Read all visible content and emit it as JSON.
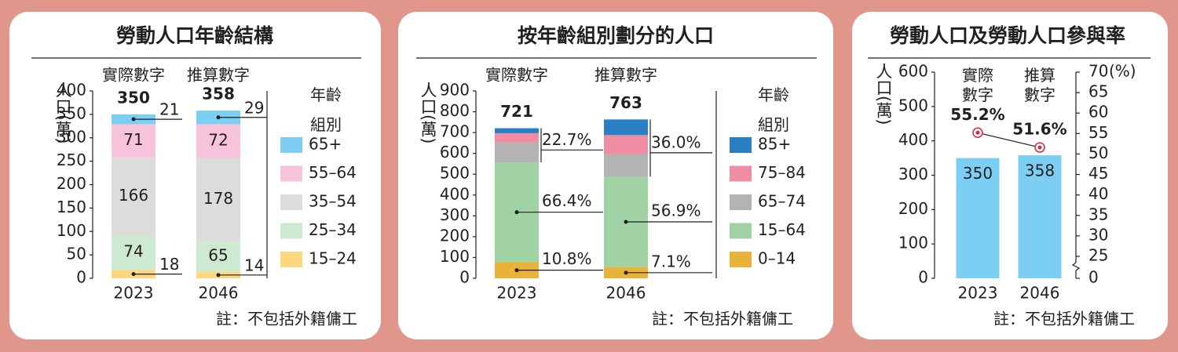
{
  "chart_data": [
    {
      "type": "stacked_bar",
      "title": "勞動人口年齡結構",
      "column_headers": [
        "實際數字",
        "推算數字"
      ],
      "categories": [
        "2023",
        "2046"
      ],
      "ylabel": "人口(萬)",
      "ylim": [
        0,
        400
      ],
      "yticks": [
        0,
        50,
        100,
        150,
        200,
        250,
        300,
        350,
        400
      ],
      "totals": [
        350,
        358
      ],
      "legend_title": "年齡組別",
      "series": [
        {
          "name": "15–24",
          "color": "#fdd77e",
          "values": [
            18,
            14
          ]
        },
        {
          "name": "25–34",
          "color": "#cde9cf",
          "values": [
            74,
            65
          ]
        },
        {
          "name": "35–54",
          "color": "#dcdcdc",
          "values": [
            166,
            178
          ]
        },
        {
          "name": "55–64",
          "color": "#f7c3da",
          "values": [
            71,
            72
          ]
        },
        {
          "name": "65+",
          "color": "#7ccff3",
          "values": [
            21,
            29
          ]
        }
      ],
      "note": "註：不包括外籍傭工"
    },
    {
      "type": "stacked_bar",
      "title": "按年齡組別劃分的人口",
      "column_headers": [
        "實際數字",
        "推算數字"
      ],
      "categories": [
        "2023",
        "2046"
      ],
      "ylabel": "人口(萬)",
      "ylim": [
        0,
        900
      ],
      "yticks": [
        0,
        100,
        200,
        300,
        400,
        500,
        600,
        700,
        800,
        900
      ],
      "totals": [
        721,
        763
      ],
      "legend_title": "年齡組別",
      "series": [
        {
          "name": "0–14",
          "color": "#e9b33a",
          "values": [
            78,
            54
          ]
        },
        {
          "name": "15–64",
          "color": "#a0d2a4",
          "values": [
            479,
            434
          ]
        },
        {
          "name": "65–74",
          "color": "#b3b3b3",
          "values": [
            95,
            109
          ]
        },
        {
          "name": "75–84",
          "color": "#ef8ea2",
          "values": [
            45,
            91
          ]
        },
        {
          "name": "85+",
          "color": "#2a7fc4",
          "values": [
            24,
            75
          ]
        }
      ],
      "shares": [
        {
          "values": [
            10.8,
            66.4,
            22.7
          ],
          "value_labels": [
            "10.8%",
            "66.4%",
            "22.7%"
          ]
        },
        {
          "values": [
            7.1,
            56.9,
            36.0
          ],
          "value_labels": [
            "7.1%",
            "56.9%",
            "36.0%"
          ]
        }
      ],
      "note": "註：不包括外籍傭工"
    },
    {
      "type": "bar_line",
      "title": "勞動人口及勞動人口參與率",
      "column_headers": [
        "實際數字",
        "推算數字"
      ],
      "categories": [
        "2023",
        "2046"
      ],
      "ylabel": "人口(萬)",
      "ylim": [
        0,
        600
      ],
      "yticks": [
        0,
        100,
        200,
        300,
        400,
        500,
        600
      ],
      "y2label": "(%)",
      "y2lim": [
        0,
        70
      ],
      "y2ticks": [
        0,
        25,
        30,
        35,
        40,
        45,
        50,
        55,
        60,
        65,
        70
      ],
      "y2_break": [
        0,
        25
      ],
      "series": [
        {
          "color": "#7ccff3",
          "values": [
            350,
            358
          ]
        },
        {
          "color": "#e8962a",
          "marker_color": "#d8283e",
          "values": [
            55.2,
            51.6
          ],
          "value_labels": [
            "55.2%",
            "51.6%"
          ],
          "axis": "y2"
        }
      ],
      "note": "註：不包括外籍傭工"
    }
  ]
}
